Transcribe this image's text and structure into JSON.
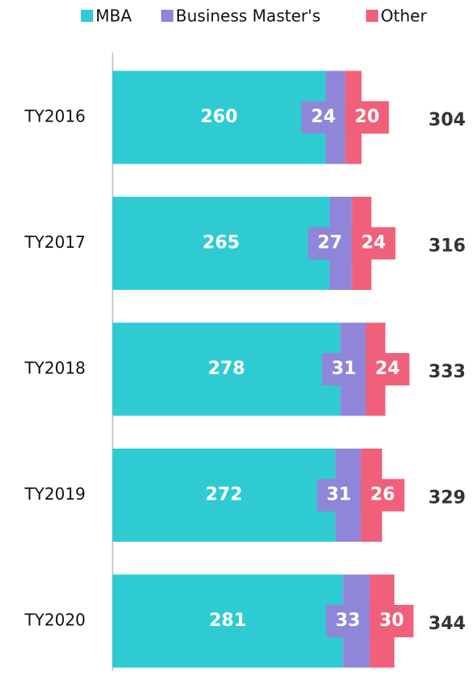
{
  "chart_data": {
    "type": "stacked-bar-horizontal",
    "categories": [
      "TY2016",
      "TY2017",
      "TY2018",
      "TY2019",
      "TY2020"
    ],
    "series": [
      {
        "name": "MBA",
        "color": "#2ecbd3",
        "values": [
          260,
          265,
          278,
          272,
          281
        ]
      },
      {
        "name": "Business Master's",
        "color": "#8f86d9",
        "values": [
          24,
          27,
          31,
          31,
          33
        ]
      },
      {
        "name": "Other",
        "color": "#f0607a",
        "values": [
          20,
          24,
          24,
          26,
          30
        ]
      }
    ],
    "totals": [
      304,
      316,
      333,
      329,
      344
    ],
    "xlim": [
      0,
      440
    ],
    "legend": "top"
  }
}
